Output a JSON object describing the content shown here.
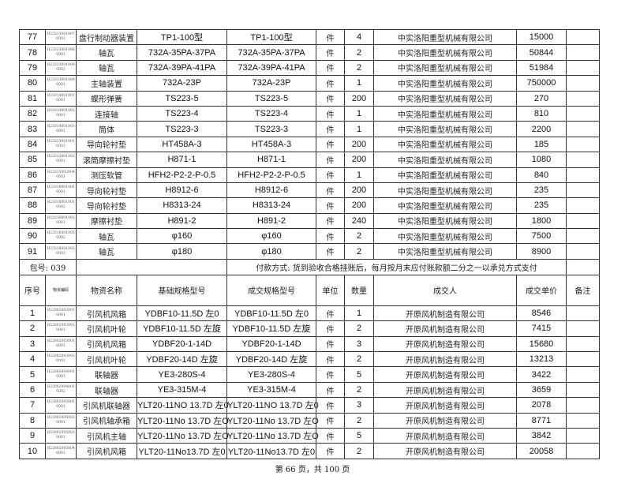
{
  "top_rows": [
    {
      "no": "77",
      "code1": "H23313001007",
      "code2": "0001",
      "name": "盘行制动器装置",
      "base_spec": "TP1-100型",
      "deal_spec": "TP1-100型",
      "unit": "件",
      "qty": "4",
      "dealer": "中实洛阳重型机械有限公司",
      "price": "15000",
      "remark": ""
    },
    {
      "no": "78",
      "code1": "H23313001008",
      "code2": "0001",
      "name": "轴瓦",
      "base_spec": "732A-35PA-37PA",
      "deal_spec": "732A-35PA-37PA",
      "unit": "件",
      "qty": "2",
      "dealer": "中实洛阳重型机械有限公司",
      "price": "50844",
      "remark": ""
    },
    {
      "no": "79",
      "code1": "H23313001008",
      "code2": "0002",
      "name": "轴瓦",
      "base_spec": "732A-39PA-41PA",
      "deal_spec": "732A-39PA-41PA",
      "unit": "件",
      "qty": "2",
      "dealer": "中实洛阳重型机械有限公司",
      "price": "51984",
      "remark": ""
    },
    {
      "no": "80",
      "code1": "H23313001009",
      "code2": "0001",
      "name": "主轴装置",
      "base_spec": "732A-23P",
      "deal_spec": "732A-23P",
      "unit": "件",
      "qty": "1",
      "dealer": "中实洛阳重型机械有限公司",
      "price": "750000",
      "remark": ""
    },
    {
      "no": "81",
      "code1": "H23314001001",
      "code2": "0001",
      "name": "蝶形弹簧",
      "base_spec": "TS223-5",
      "deal_spec": "TS223-5",
      "unit": "件",
      "qty": "200",
      "dealer": "中实洛阳重型机械有限公司",
      "price": "270",
      "remark": ""
    },
    {
      "no": "82",
      "code1": "H23314001002",
      "code2": "0001",
      "name": "连接轴",
      "base_spec": "TS223-4",
      "deal_spec": "TS223-4",
      "unit": "件",
      "qty": "1",
      "dealer": "中实洛阳重型机械有限公司",
      "price": "810",
      "remark": ""
    },
    {
      "no": "83",
      "code1": "H23314001003",
      "code2": "0001",
      "name": "筒体",
      "base_spec": "TS223-3",
      "deal_spec": "TS223-3",
      "unit": "件",
      "qty": "1",
      "dealer": "中实洛阳重型机械有限公司",
      "price": "2200",
      "remark": ""
    },
    {
      "no": "84",
      "code1": "H23315001001",
      "code2": "0001",
      "name": "导向轮衬垫",
      "base_spec": "HT458A-3",
      "deal_spec": "HT458A-3",
      "unit": "件",
      "qty": "200",
      "dealer": "中实洛阳重型机械有限公司",
      "price": "185",
      "remark": ""
    },
    {
      "no": "85",
      "code1": "H23315001002",
      "code2": "0001",
      "name": "滚筒摩擦衬垫",
      "base_spec": "H871-1",
      "deal_spec": "H871-1",
      "unit": "件",
      "qty": "200",
      "dealer": "中实洛阳重型机械有限公司",
      "price": "1080",
      "remark": ""
    },
    {
      "no": "86",
      "code1": "H23315002004",
      "code2": "0001",
      "name": "测压软管",
      "base_spec": "HFH2-P2-2-P-0.5",
      "deal_spec": "HFH2-P2-2-P-0.5",
      "unit": "件",
      "qty": "1",
      "dealer": "中实洛阳重型机械有限公司",
      "price": "840",
      "remark": ""
    },
    {
      "no": "87",
      "code1": "H23316001001",
      "code2": "0001",
      "name": "导向轮衬垫",
      "base_spec": "H8912-6",
      "deal_spec": "H8912-6",
      "unit": "件",
      "qty": "200",
      "dealer": "中实洛阳重型机械有限公司",
      "price": "235",
      "remark": ""
    },
    {
      "no": "88",
      "code1": "H23316001001",
      "code2": "0002",
      "name": "导向轮衬垫",
      "base_spec": "H8313-24",
      "deal_spec": "H8313-24",
      "unit": "件",
      "qty": "200",
      "dealer": "中实洛阳重型机械有限公司",
      "price": "235",
      "remark": ""
    },
    {
      "no": "89",
      "code1": "H23316001002",
      "code2": "0001",
      "name": "摩擦衬垫",
      "base_spec": "H891-2",
      "deal_spec": "H891-2",
      "unit": "件",
      "qty": "240",
      "dealer": "中实洛阳重型机械有限公司",
      "price": "1800",
      "remark": ""
    },
    {
      "no": "90",
      "code1": "H23316001003",
      "code2": "0002",
      "name": "轴瓦",
      "base_spec": "φ160",
      "deal_spec": "φ160",
      "unit": "件",
      "qty": "2",
      "dealer": "中实洛阳重型机械有限公司",
      "price": "7500",
      "remark": ""
    },
    {
      "no": "91",
      "code1": "H23316001003",
      "code2": "0003",
      "name": "轴瓦",
      "base_spec": "φ180",
      "deal_spec": "φ180",
      "unit": "件",
      "qty": "2",
      "dealer": "中实洛阳重型机械有限公司",
      "price": "8900",
      "remark": ""
    }
  ],
  "package": {
    "label": "包号: 039",
    "payment": "付款方式: 货到验收合格挂账后，每月按月末应付账款额二分之一以承兑方式支付"
  },
  "headers": {
    "no": "序号",
    "code": "物资编码",
    "name": "物资名称",
    "base_spec": "基础规格型号",
    "deal_spec": "成交规格型号",
    "unit": "单位",
    "qty": "数量",
    "dealer": "成交人",
    "price": "成交单价",
    "remark": "备注"
  },
  "bottom_rows": [
    {
      "no": "1",
      "code1": "H22002002001",
      "code2": "0001",
      "name": "引风机风箱",
      "base_spec": "YDBF10-11.5D 左0",
      "deal_spec": "YDBF10-11.5D 左0",
      "unit": "件",
      "qty": "1",
      "dealer": "开原风机制造有限公司",
      "price": "8546",
      "remark": ""
    },
    {
      "no": "2",
      "code1": "H22002002002",
      "code2": "0001",
      "name": "引风机叶轮",
      "base_spec": "YDBF10-11.5D 左旋",
      "deal_spec": "YDBF10-11.5D 左旋",
      "unit": "件",
      "qty": "2",
      "dealer": "开原风机制造有限公司",
      "price": "7415",
      "remark": ""
    },
    {
      "no": "3",
      "code1": "H22002003001",
      "code2": "0001",
      "name": "引风机风箱",
      "base_spec": "YDBF20-1-14D",
      "deal_spec": "YDBF20-1-14D",
      "unit": "件",
      "qty": "3",
      "dealer": "开原风机制造有限公司",
      "price": "15680",
      "remark": ""
    },
    {
      "no": "4",
      "code1": "H22002003003",
      "code2": "0001",
      "name": "引风机叶轮",
      "base_spec": "YDBF20-14D 左旋",
      "deal_spec": "YDBF20-14D 左旋",
      "unit": "件",
      "qty": "2",
      "dealer": "开原风机制造有限公司",
      "price": "13213",
      "remark": ""
    },
    {
      "no": "5",
      "code1": "H22002004001",
      "code2": "0001",
      "name": "联轴器",
      "base_spec": "YE3-280S-4",
      "deal_spec": "YE3-280S-4",
      "unit": "件",
      "qty": "5",
      "dealer": "开原风机制造有限公司",
      "price": "3422",
      "remark": ""
    },
    {
      "no": "6",
      "code1": "H22002004001",
      "code2": "0002",
      "name": "联轴器",
      "base_spec": "YE3-315M-4",
      "deal_spec": "YE3-315M-4",
      "unit": "件",
      "qty": "2",
      "dealer": "开原风机制造有限公司",
      "price": "3659",
      "remark": ""
    },
    {
      "no": "7",
      "code1": "H22002005001",
      "code2": "0001",
      "name": "引风机联轴器",
      "base_spec": "YLT20-11NO 13.7D 左0",
      "deal_spec": "YLT20-11NO 13.7D 左0",
      "unit": "件",
      "qty": "3",
      "dealer": "开原风机制造有限公司",
      "price": "2078",
      "remark": ""
    },
    {
      "no": "8",
      "code1": "H22002005002",
      "code2": "0001",
      "name": "引风机轴承箱",
      "base_spec": "YLT20-11No 13.7D 左O",
      "deal_spec": "YLT20-11No 13.7D 左O",
      "unit": "件",
      "qty": "2",
      "dealer": "开原风机制造有限公司",
      "price": "8771",
      "remark": ""
    },
    {
      "no": "9",
      "code1": "H22002005003",
      "code2": "0001",
      "name": "引风机主轴",
      "base_spec": "YLT20-11No 13.7D 左O",
      "deal_spec": "YLT20-11No 13.7D 左O",
      "unit": "件",
      "qty": "5",
      "dealer": "开原风机制造有限公司",
      "price": "3842",
      "remark": ""
    },
    {
      "no": "10",
      "code1": "H22002005004",
      "code2": "0001",
      "name": "引风机风箱",
      "base_spec": "YLT20-11No13.7D 左0",
      "deal_spec": "YLT20-11No13.7D 左0",
      "unit": "件",
      "qty": "2",
      "dealer": "开原风机制造有限公司",
      "price": "20058",
      "remark": ""
    }
  ],
  "footer": "第 66 页，共 100 页"
}
